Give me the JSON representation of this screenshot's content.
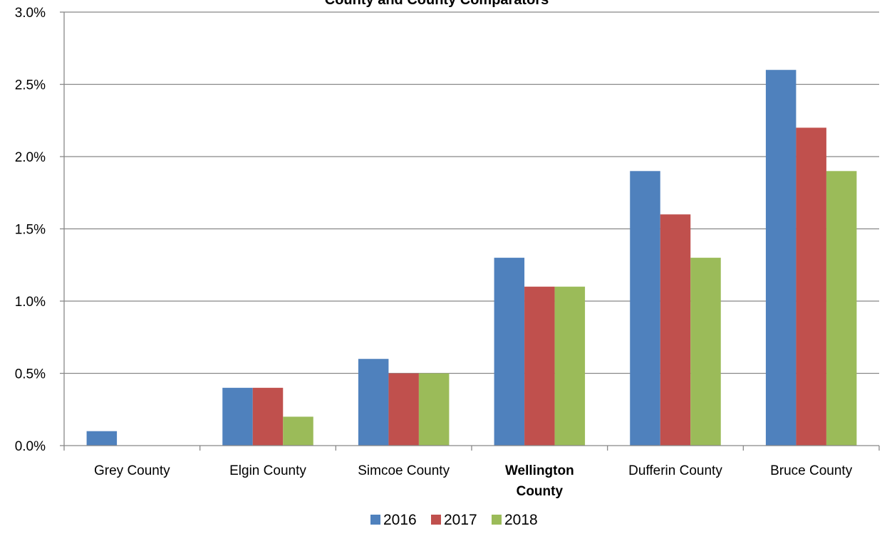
{
  "chart_data": {
    "type": "bar",
    "title": "County and County Comparators",
    "xlabel": "",
    "ylabel": "",
    "ylim": [
      0,
      3.0
    ],
    "ytick_values": [
      0,
      0.5,
      1.0,
      1.5,
      2.0,
      2.5,
      3.0
    ],
    "ytick_labels": [
      "0.0%",
      "0.5%",
      "1.0%",
      "1.5%",
      "2.0%",
      "2.5%",
      "3.0%"
    ],
    "grid": true,
    "legend_position": "bottom",
    "categories": [
      {
        "label_lines": [
          "Grey County"
        ],
        "bold": false
      },
      {
        "label_lines": [
          "Elgin County"
        ],
        "bold": false
      },
      {
        "label_lines": [
          "Simcoe County"
        ],
        "bold": false
      },
      {
        "label_lines": [
          "Wellington",
          "County"
        ],
        "bold": true
      },
      {
        "label_lines": [
          "Dufferin County"
        ],
        "bold": false
      },
      {
        "label_lines": [
          "Bruce County"
        ],
        "bold": false
      }
    ],
    "series": [
      {
        "name": "2016",
        "color": "#4F81BD",
        "values": [
          0.1,
          0.4,
          0.6,
          1.3,
          1.9,
          2.6
        ]
      },
      {
        "name": "2017",
        "color": "#C0504D",
        "values": [
          0.0,
          0.4,
          0.5,
          1.1,
          1.6,
          2.2
        ]
      },
      {
        "name": "2018",
        "color": "#9BBB59",
        "values": [
          0.0,
          0.2,
          0.5,
          1.1,
          1.3,
          1.9
        ]
      }
    ]
  }
}
